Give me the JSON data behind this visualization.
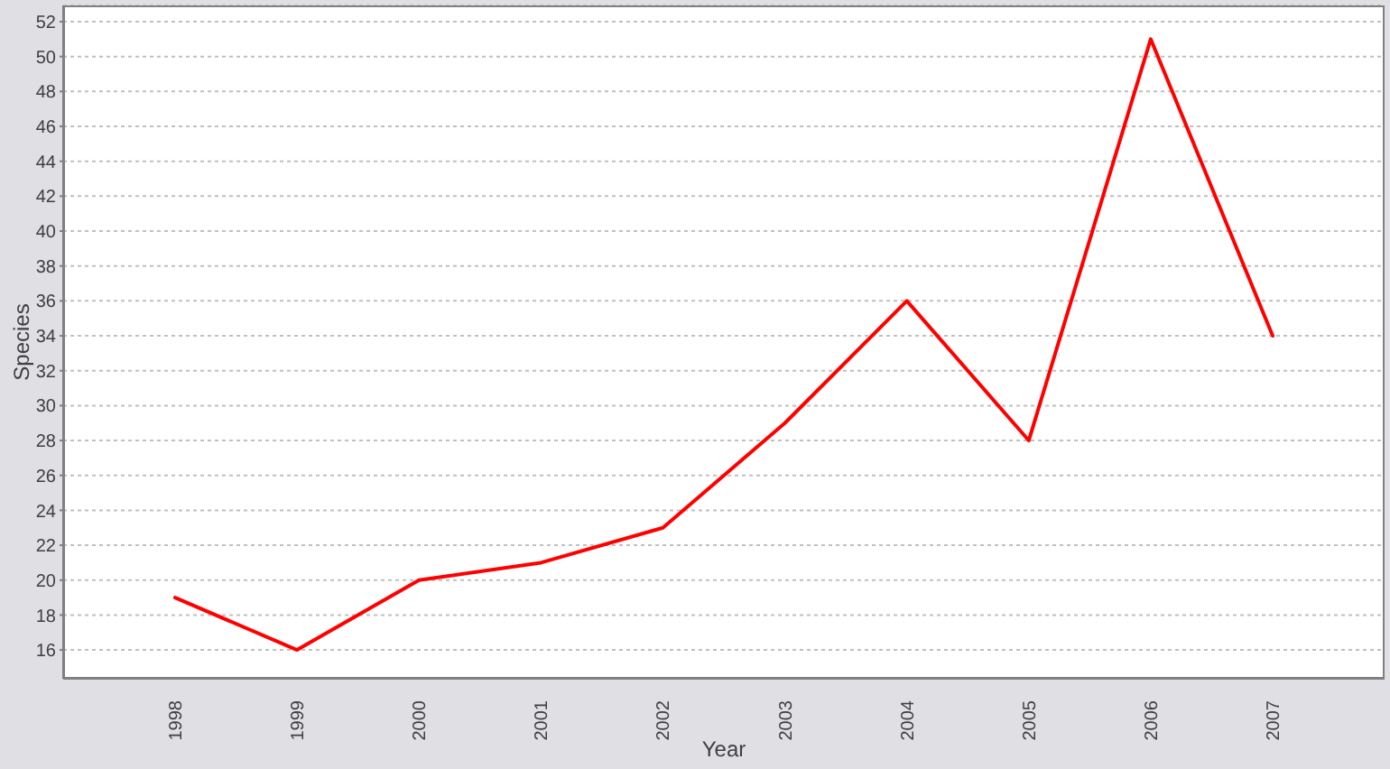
{
  "chart_data": {
    "type": "line",
    "xlabel": "Year",
    "ylabel": "Species",
    "categories": [
      "1998",
      "1999",
      "2000",
      "2001",
      "2002",
      "2003",
      "2004",
      "2005",
      "2006",
      "2007"
    ],
    "series": [
      {
        "color": "#ff0000",
        "values": [
          19,
          16,
          20,
          21,
          23,
          29,
          36,
          28,
          51,
          34
        ]
      }
    ],
    "ylim": [
      14.35,
      52.93
    ],
    "yticks": [
      16,
      18,
      20,
      22,
      24,
      26,
      28,
      30,
      32,
      34,
      36,
      38,
      40,
      42,
      44,
      46,
      48,
      50,
      52
    ],
    "grid": "y",
    "marker": "none",
    "line_style": "solid"
  }
}
